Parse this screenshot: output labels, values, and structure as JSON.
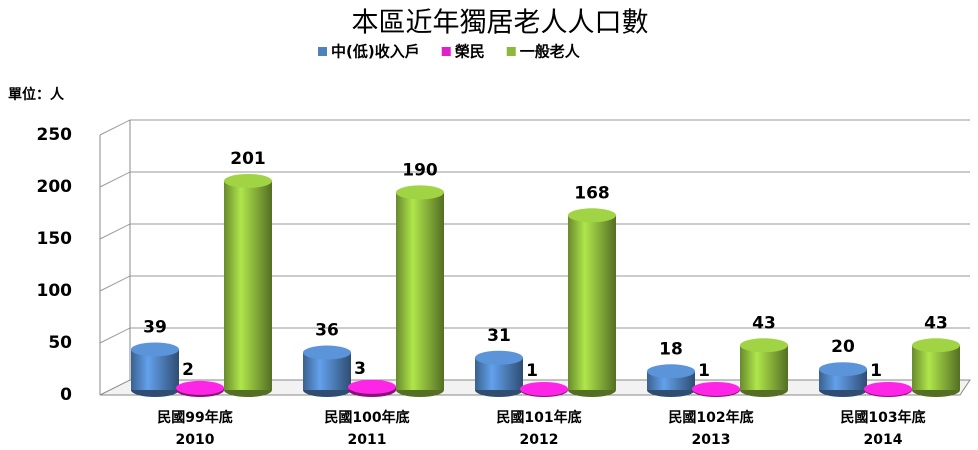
{
  "chart_data": {
    "type": "bar3d",
    "title": "本區近年獨居老人人口數",
    "unit_label": "單位：人",
    "categories": [
      "民國99年底",
      "民國100年底",
      "民國101年底",
      "民國102年底",
      "民國103年底"
    ],
    "category_sublabels": [
      "2010",
      "2011",
      "2012",
      "2013",
      "2014"
    ],
    "series": [
      {
        "name": "中(低)收入戶",
        "color": "#4f81bd",
        "values": [
          39,
          36,
          31,
          18,
          20
        ]
      },
      {
        "name": "榮民",
        "color": "#e020c8",
        "values": [
          2,
          3,
          1,
          1,
          1
        ]
      },
      {
        "name": "一般老人",
        "color": "#8cb83c",
        "values": [
          201,
          190,
          168,
          43,
          43
        ]
      }
    ],
    "ylim": [
      0,
      250
    ],
    "yticks": [
      0,
      50,
      100,
      150,
      200,
      250
    ],
    "grid": true
  }
}
